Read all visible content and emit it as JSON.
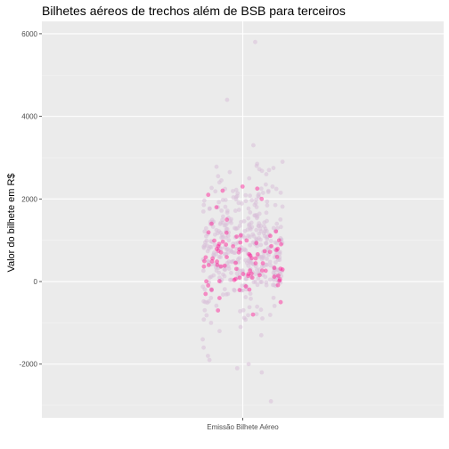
{
  "chart_data": {
    "type": "scatter",
    "title": "Bilhetes aéreos de trechos além de BSB para terceiros",
    "xlabel": "",
    "ylabel": "Valor do bilhete em R$",
    "categories": [
      "Emissão Bilhete Aéreo"
    ],
    "yticks": [
      -2000,
      0,
      2000,
      4000,
      6000
    ],
    "ylim": [
      -3300,
      6300
    ],
    "grid": true,
    "jitter": "horizontal",
    "colors": {
      "panel": "#ebebeb",
      "grid_major": "#ffffff",
      "point_light": "#d8bfd8",
      "point_accent": "#ff1493",
      "text": "#4d4d4d"
    },
    "series": [
      {
        "values": [
          5800,
          4400,
          3300,
          2900,
          2850,
          2800,
          2780,
          2750,
          2720,
          2700,
          2680,
          2650,
          2600,
          2550,
          2500,
          2450,
          2400,
          2350,
          2300,
          2250,
          2200,
          2150,
          2100,
          2050,
          2000,
          1950,
          1900,
          1850,
          1800,
          1750,
          1700,
          1650,
          1600,
          1550,
          1500,
          1450,
          1400,
          1350,
          1300,
          1250,
          1200,
          1150,
          1100,
          1050,
          1000,
          950,
          900,
          850,
          800,
          750,
          700,
          650,
          600,
          550,
          500,
          450,
          400,
          350,
          300,
          250,
          200,
          150,
          100,
          50,
          0,
          -100,
          -200,
          -300,
          -400,
          -500,
          -600,
          -700,
          -800,
          -900,
          -1000,
          -1100,
          -1200,
          -1300,
          -1400,
          -1600,
          -1800,
          -1900,
          -2000,
          -2100,
          -2200,
          -2900
        ]
      },
      {
        "values": [
          2300,
          2250,
          2200,
          2100,
          2000,
          1800,
          1500,
          1400,
          1200,
          1100,
          1000,
          950,
          900,
          850,
          800,
          750,
          700,
          650,
          600,
          550,
          500,
          450,
          400,
          350,
          300,
          250,
          200,
          150,
          100,
          50,
          0,
          -100,
          -200,
          -300,
          -400,
          -500,
          -700,
          -800
        ]
      }
    ]
  }
}
